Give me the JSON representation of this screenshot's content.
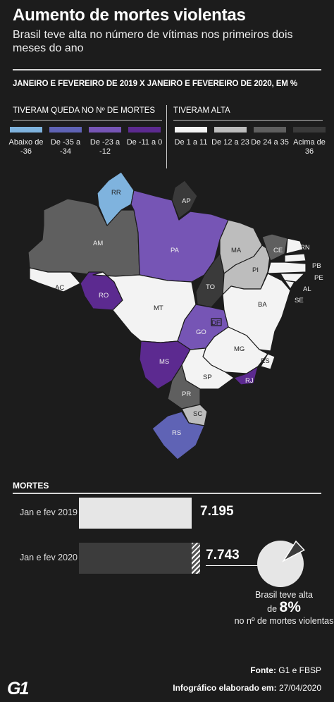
{
  "header": {
    "title": "Aumento de mortes violentas",
    "subtitle": "Brasil teve alta no número de vítimas nos primeiros dois meses do ano"
  },
  "map_section": {
    "comparison_title": "JANEIRO E FEVEREIRO DE 2019 X JANEIRO E FEVEREIRO DE 2020, EM %",
    "group_down": "TIVERAM QUEDA NO Nº DE MORTES",
    "group_up": "TIVERAM ALTA",
    "legend": [
      {
        "label": "Abaixo de -36",
        "color": "#7fb3de"
      },
      {
        "label": "De -35 a -34",
        "color": "#5f63b5"
      },
      {
        "label": "De -23 a -12",
        "color": "#7655b5"
      },
      {
        "label": "De -11 a 0",
        "color": "#5c2a90"
      },
      {
        "label": "De 1 a 11",
        "color": "#f3f3f3"
      },
      {
        "label": "De 12 a 23",
        "color": "#bdbdbd"
      },
      {
        "label": "De 24 a 35",
        "color": "#5f5f5f"
      },
      {
        "label": "Acima de 36",
        "color": "#3a3a3a"
      }
    ],
    "states": [
      {
        "label": "RR",
        "category": 0
      },
      {
        "label": "AP",
        "category": 7
      },
      {
        "label": "AM",
        "category": 6
      },
      {
        "label": "PA",
        "category": 2
      },
      {
        "label": "MA",
        "category": 5
      },
      {
        "label": "CE",
        "category": 6
      },
      {
        "label": "RN",
        "category": 4
      },
      {
        "label": "PB",
        "category": 4
      },
      {
        "label": "PE",
        "category": 4
      },
      {
        "label": "PI",
        "category": 5
      },
      {
        "label": "AL",
        "category": 4
      },
      {
        "label": "SE",
        "category": 4
      },
      {
        "label": "AC",
        "category": 4
      },
      {
        "label": "RO",
        "category": 3
      },
      {
        "label": "TO",
        "category": 7
      },
      {
        "label": "BA",
        "category": 4
      },
      {
        "label": "MT",
        "category": 4
      },
      {
        "label": "GO",
        "category": 2
      },
      {
        "label": "DF",
        "category": 2
      },
      {
        "label": "MG",
        "category": 4
      },
      {
        "label": "MS",
        "category": 3
      },
      {
        "label": "ES",
        "category": 4
      },
      {
        "label": "SP",
        "category": 4
      },
      {
        "label": "RJ",
        "category": 3
      },
      {
        "label": "PR",
        "category": 6
      },
      {
        "label": "SC",
        "category": 5
      },
      {
        "label": "RS",
        "category": 1
      }
    ]
  },
  "deaths": {
    "section_title": "MORTES",
    "note_line1": "Brasil teve alta",
    "note_prefix": "de",
    "note_value": "8%",
    "note_line3": "no nº de mortes violentas"
  },
  "chart_data": {
    "type": "bar",
    "categories": [
      "Jan e fev 2019",
      "Jan e fev 2020"
    ],
    "values": [
      7195,
      7743
    ],
    "value_labels": [
      "7.195",
      "7.743"
    ],
    "colors": [
      "#e6e6e6",
      "#3c3c3c"
    ],
    "ylabel": "",
    "xlabel": ""
  },
  "footer": {
    "source_label": "Fonte:",
    "source_value": "G1 e FBSP",
    "made_label": "Infográfico elaborado em:",
    "made_value": "27/04/2020",
    "logo": "G1"
  }
}
